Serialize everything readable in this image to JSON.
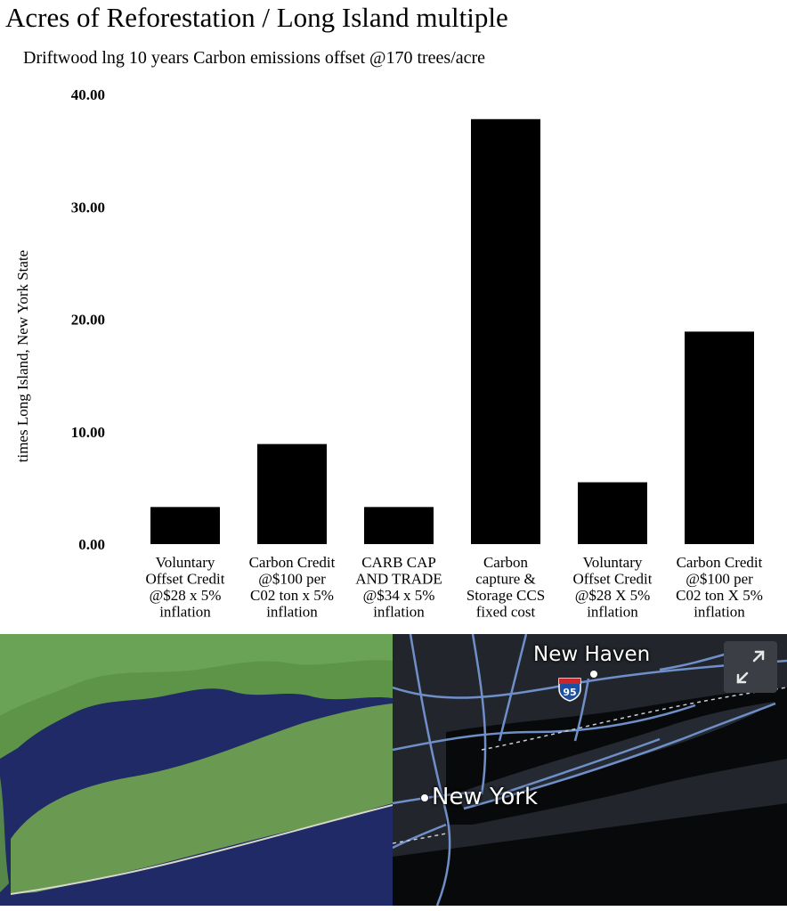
{
  "chart_data": {
    "type": "bar",
    "title": "Acres of Reforestation / Long Island multiple",
    "subtitle": "Driftwood lng 10 years Carbon emissions offset @170 trees/acre",
    "ylabel": "times Long Island, New York State",
    "xlabel": "",
    "ylim": [
      0,
      40
    ],
    "yticks": [
      "0.00",
      "10.00",
      "20.00",
      "30.00",
      "40.00"
    ],
    "ytick_values": [
      0,
      10,
      20,
      30,
      40
    ],
    "grid": false,
    "bar_color": "#000000",
    "categories": [
      [
        "Voluntary",
        "Offset Credit",
        "@$28 x 5%",
        "inflation"
      ],
      [
        "Carbon Credit",
        "@$100 per",
        "C02 ton x 5%",
        "inflation"
      ],
      [
        "CARB CAP",
        "AND TRADE",
        "@$34 x 5%",
        "inflation"
      ],
      [
        "Carbon",
        "capture &",
        "Storage CCS",
        "fixed cost"
      ],
      [
        "Voluntary",
        "Offset Credit",
        "@$28 X 5%",
        "inflation"
      ],
      [
        "Carbon Credit",
        "@$100 per",
        "C02 ton X 5%",
        "inflation"
      ]
    ],
    "values": [
      3.3,
      8.9,
      3.3,
      37.8,
      5.5,
      18.9
    ]
  },
  "map": {
    "city_a": "New Haven",
    "city_b": "New York",
    "highway": "95",
    "expand_icon": "expand-arrows-icon"
  },
  "colors": {
    "map_land": "#22262c",
    "map_water": "#08090b",
    "map_roads": "#6f8fc9",
    "sat_water": "#1f2a66",
    "sat_land": "#5f9a4a"
  }
}
